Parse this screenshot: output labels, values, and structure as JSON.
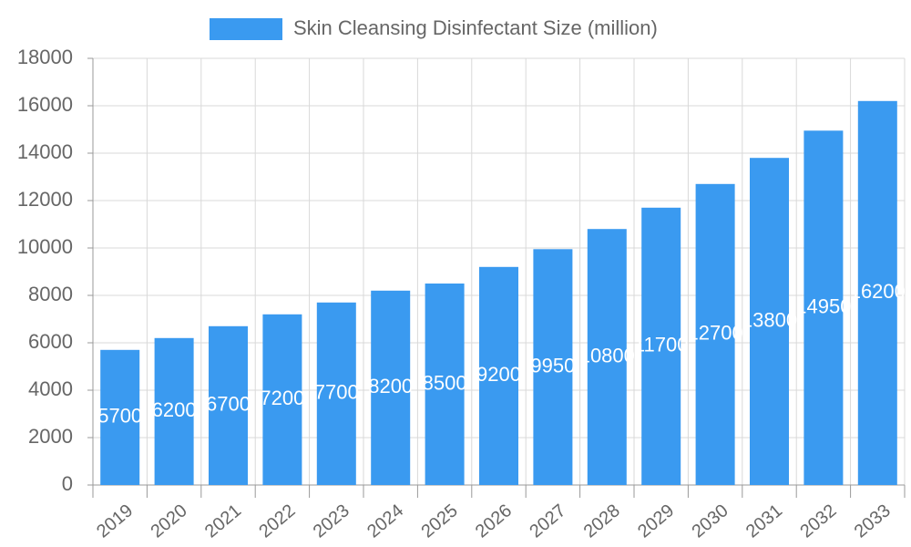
{
  "chart_data": {
    "type": "bar",
    "series": [
      {
        "name": "Skin Cleansing Disinfectant Size (million)",
        "color": "#3a9af0",
        "values": [
          5700,
          6200,
          6700,
          7200,
          7700,
          8200,
          8500,
          9200,
          9950,
          10800,
          11700,
          12700,
          13800,
          14950,
          16200
        ]
      }
    ],
    "categories": [
      "2019",
      "2020",
      "2021",
      "2022",
      "2023",
      "2024",
      "2025",
      "2026",
      "2027",
      "2028",
      "2029",
      "2030",
      "2031",
      "2032",
      "2033"
    ],
    "ylim": [
      0,
      18000
    ],
    "yticks": [
      0,
      2000,
      4000,
      6000,
      8000,
      10000,
      12000,
      14000,
      16000,
      18000
    ],
    "grid": true,
    "legend": "top"
  }
}
